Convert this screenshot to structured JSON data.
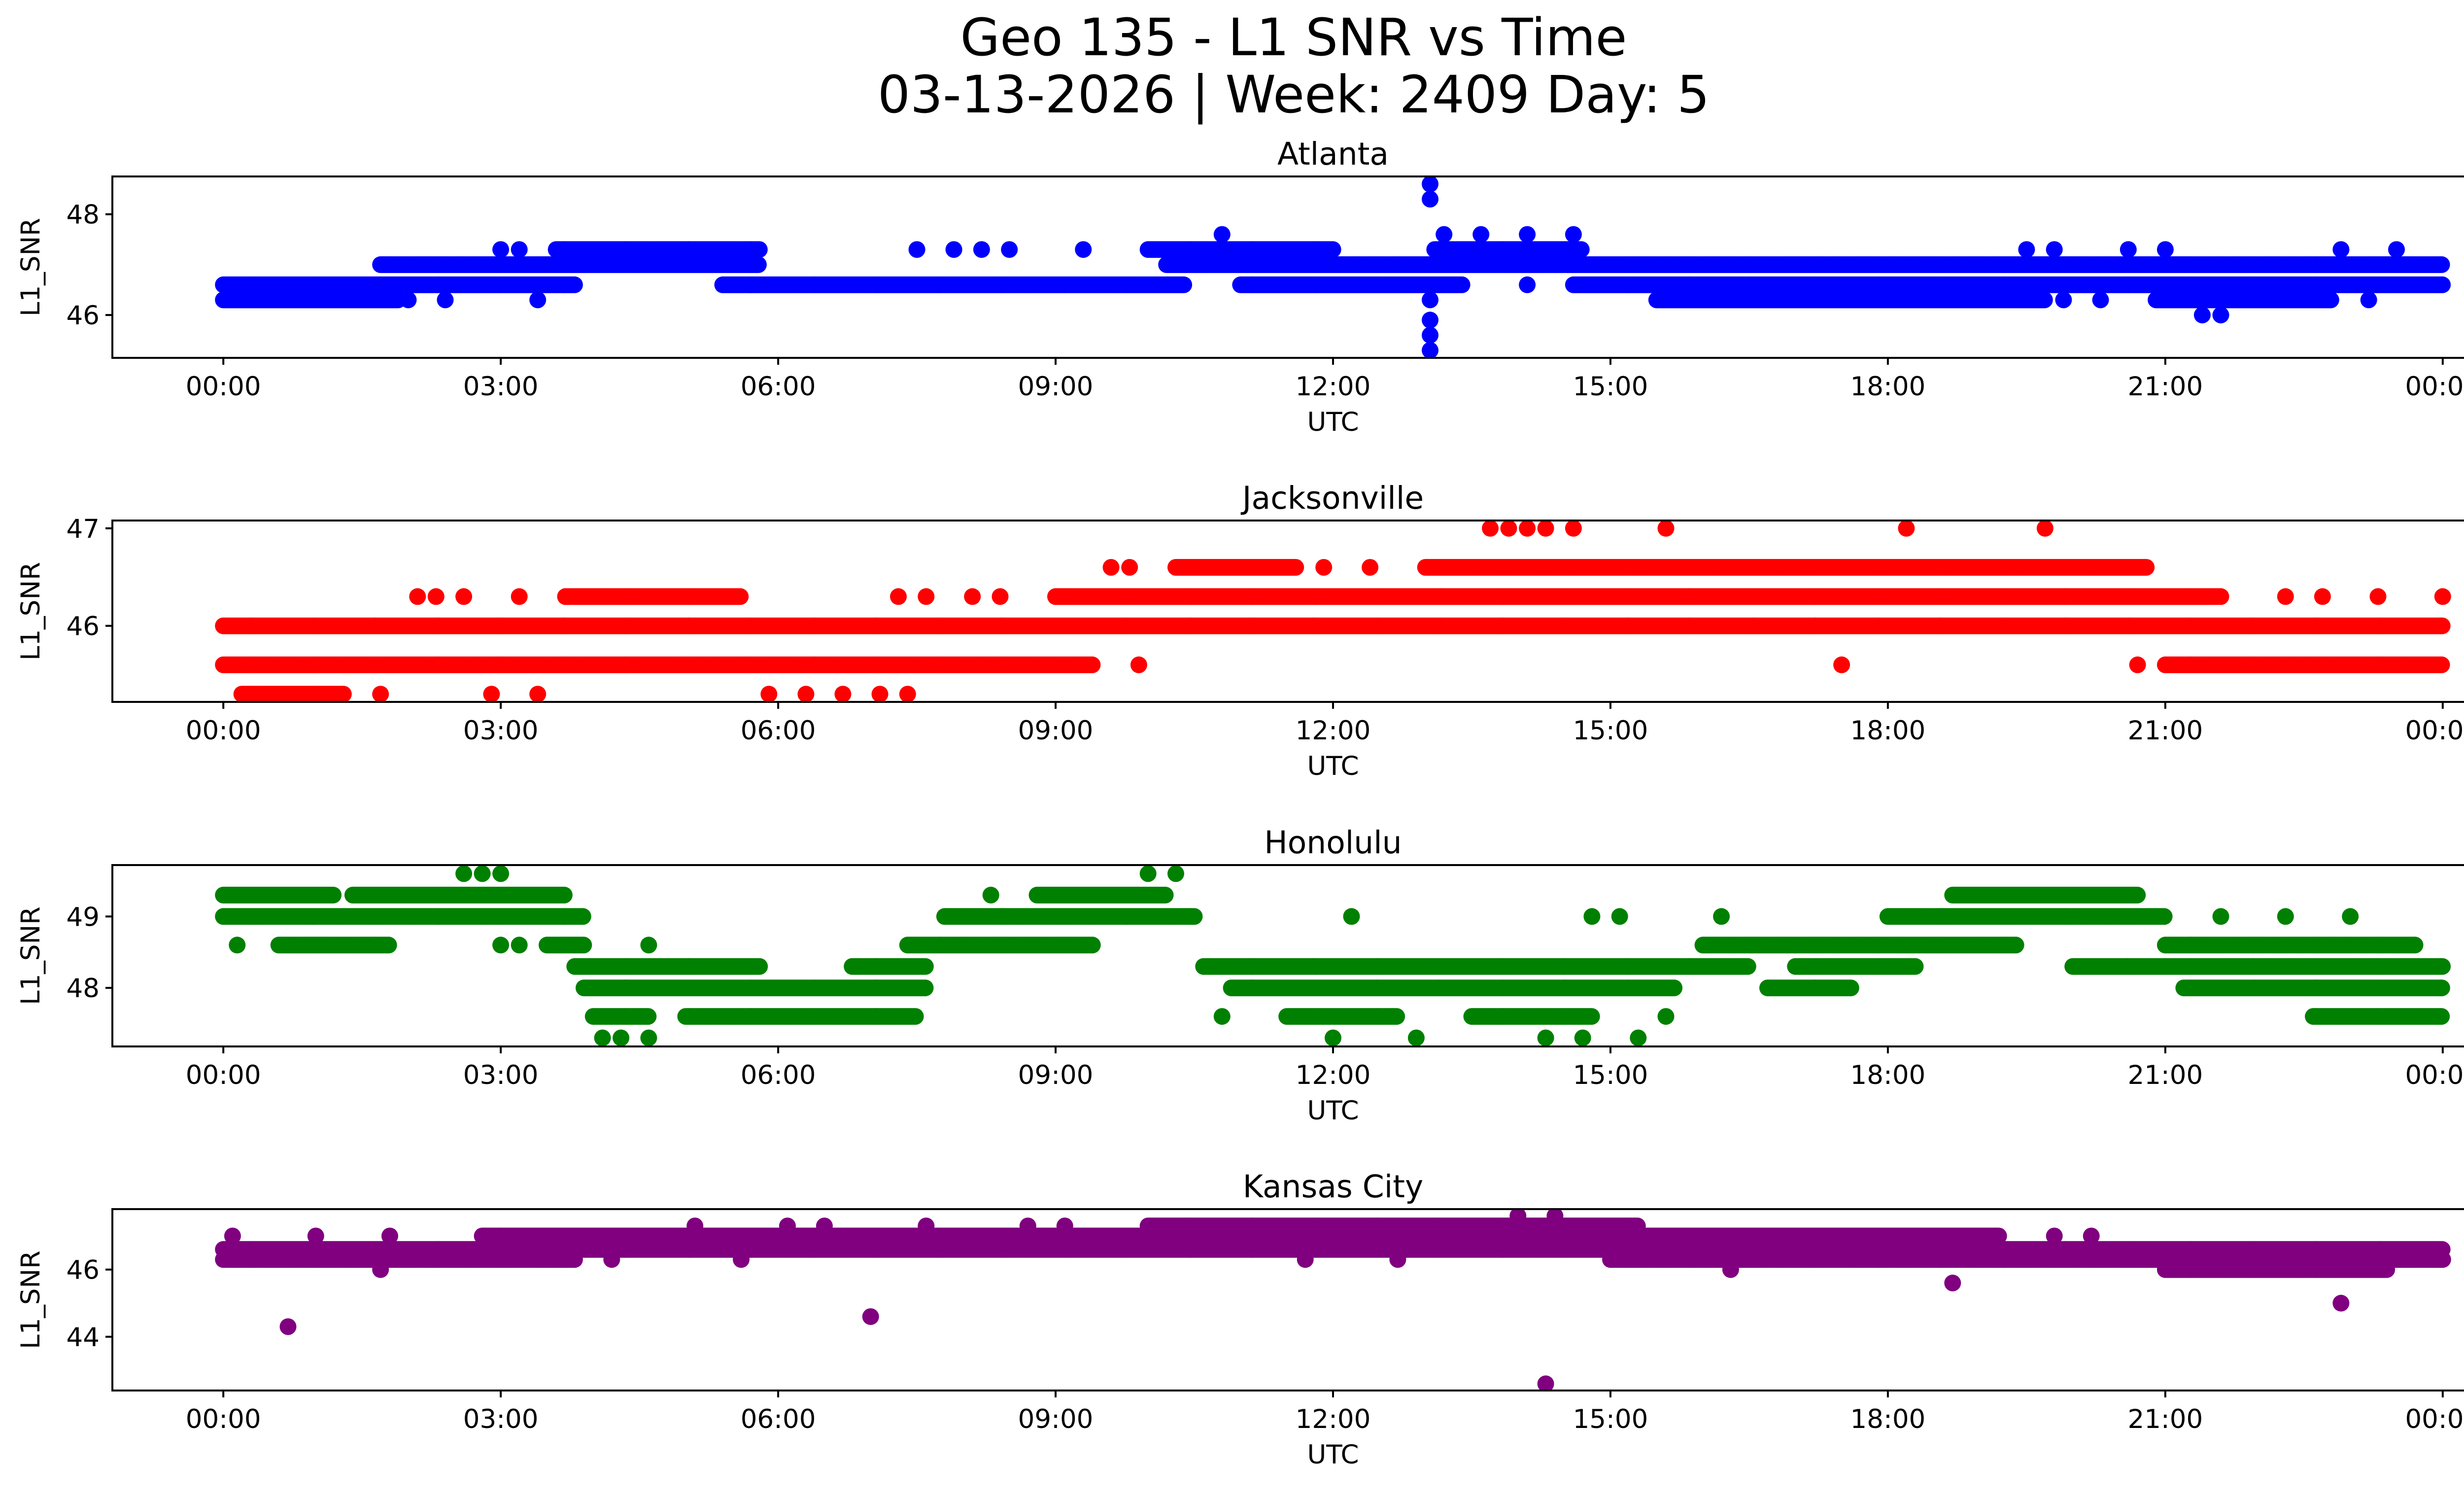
{
  "figure": {
    "title_line1": "Geo 135 - L1 SNR vs Time",
    "title_line2": "03-13-2026 | Week: 2409 Day: 5"
  },
  "chart_data": [
    {
      "type": "scatter",
      "title": "Atlanta",
      "xlabel": "UTC",
      "ylabel": "L1_SNR",
      "color": "#0000ff",
      "xlim": [
        -1.2,
        25.2
      ],
      "ylim": [
        45.15,
        48.75
      ],
      "x_ticks": [
        0,
        3,
        6,
        9,
        12,
        15,
        18,
        21,
        24
      ],
      "x_tick_labels": [
        "00:00",
        "03:00",
        "06:00",
        "09:00",
        "12:00",
        "15:00",
        "18:00",
        "21:00",
        "00:00"
      ],
      "y_ticks": [
        46,
        48
      ],
      "y_tick_labels": [
        "46",
        "48"
      ],
      "bands": [
        {
          "y": 47.0,
          "ranges": [
            [
              1.7,
              5.8
            ],
            [
              10.2,
              24.0
            ]
          ]
        },
        {
          "y": 46.6,
          "ranges": [
            [
              0.0,
              3.8
            ],
            [
              5.4,
              10.4
            ],
            [
              11.0,
              13.4
            ],
            [
              14.6,
              24.0
            ]
          ]
        },
        {
          "y": 46.3,
          "ranges": [
            [
              0.0,
              1.9
            ],
            [
              15.5,
              19.7
            ],
            [
              20.9,
              22.8
            ]
          ]
        },
        {
          "y": 47.3,
          "ranges": [
            [
              3.6,
              5.8
            ],
            [
              10.0,
              12.0
            ],
            [
              13.1,
              14.7
            ]
          ]
        }
      ],
      "outliers": [
        {
          "x": 13.05,
          "y": 48.6
        },
        {
          "x": 13.05,
          "y": 48.3
        },
        {
          "x": 13.05,
          "y": 46.3
        },
        {
          "x": 13.05,
          "y": 45.9
        },
        {
          "x": 13.05,
          "y": 45.6
        },
        {
          "x": 13.05,
          "y": 45.3
        },
        {
          "x": 10.8,
          "y": 47.6
        },
        {
          "x": 14.6,
          "y": 47.6
        },
        {
          "x": 13.2,
          "y": 47.6
        },
        {
          "x": 13.6,
          "y": 47.6
        },
        {
          "x": 14.1,
          "y": 47.6
        },
        {
          "x": 3.0,
          "y": 47.3
        },
        {
          "x": 3.2,
          "y": 47.3
        },
        {
          "x": 7.5,
          "y": 47.3
        },
        {
          "x": 7.9,
          "y": 47.3
        },
        {
          "x": 8.2,
          "y": 47.3
        },
        {
          "x": 8.5,
          "y": 47.3
        },
        {
          "x": 9.3,
          "y": 47.3
        },
        {
          "x": 19.5,
          "y": 47.3
        },
        {
          "x": 19.8,
          "y": 47.3
        },
        {
          "x": 20.6,
          "y": 47.3
        },
        {
          "x": 21.0,
          "y": 47.3
        },
        {
          "x": 22.9,
          "y": 47.3
        },
        {
          "x": 23.5,
          "y": 47.3
        },
        {
          "x": 2.0,
          "y": 46.3
        },
        {
          "x": 2.4,
          "y": 46.3
        },
        {
          "x": 3.4,
          "y": 46.3
        },
        {
          "x": 14.1,
          "y": 46.6
        },
        {
          "x": 19.9,
          "y": 46.3
        },
        {
          "x": 20.3,
          "y": 46.3
        },
        {
          "x": 21.4,
          "y": 46.0
        },
        {
          "x": 21.6,
          "y": 46.0
        },
        {
          "x": 23.2,
          "y": 46.3
        }
      ]
    },
    {
      "type": "scatter",
      "title": "Jacksonville",
      "xlabel": "UTC",
      "ylabel": "L1_SNR",
      "color": "#ff0000",
      "xlim": [
        -1.2,
        25.2
      ],
      "ylim": [
        45.22,
        47.08
      ],
      "x_ticks": [
        0,
        3,
        6,
        9,
        12,
        15,
        18,
        21,
        24
      ],
      "x_tick_labels": [
        "00:00",
        "03:00",
        "06:00",
        "09:00",
        "12:00",
        "15:00",
        "18:00",
        "21:00",
        "00:00"
      ],
      "y_ticks": [
        46,
        47
      ],
      "y_tick_labels": [
        "46",
        "47"
      ],
      "bands": [
        {
          "y": 46.0,
          "ranges": [
            [
              0.0,
              24.0
            ]
          ]
        },
        {
          "y": 45.6,
          "ranges": [
            [
              0.0,
              9.4
            ],
            [
              21.0,
              24.0
            ]
          ]
        },
        {
          "y": 46.3,
          "ranges": [
            [
              3.7,
              5.6
            ],
            [
              9.0,
              21.6
            ]
          ]
        },
        {
          "y": 46.6,
          "ranges": [
            [
              10.3,
              11.6
            ],
            [
              13.0,
              20.8
            ]
          ]
        },
        {
          "y": 45.3,
          "ranges": [
            [
              0.2,
              1.3
            ]
          ]
        }
      ],
      "outliers": [
        {
          "x": 13.7,
          "y": 47.0
        },
        {
          "x": 13.9,
          "y": 47.0
        },
        {
          "x": 14.1,
          "y": 47.0
        },
        {
          "x": 14.3,
          "y": 47.0
        },
        {
          "x": 14.6,
          "y": 47.0
        },
        {
          "x": 15.6,
          "y": 47.0
        },
        {
          "x": 18.2,
          "y": 47.0
        },
        {
          "x": 19.7,
          "y": 47.0
        },
        {
          "x": 9.6,
          "y": 46.6
        },
        {
          "x": 9.8,
          "y": 46.6
        },
        {
          "x": 11.9,
          "y": 46.6
        },
        {
          "x": 12.4,
          "y": 46.6
        },
        {
          "x": 2.1,
          "y": 46.3
        },
        {
          "x": 2.3,
          "y": 46.3
        },
        {
          "x": 2.6,
          "y": 46.3
        },
        {
          "x": 3.2,
          "y": 46.3
        },
        {
          "x": 7.3,
          "y": 46.3
        },
        {
          "x": 7.6,
          "y": 46.3
        },
        {
          "x": 8.1,
          "y": 46.3
        },
        {
          "x": 8.4,
          "y": 46.3
        },
        {
          "x": 22.3,
          "y": 46.3
        },
        {
          "x": 22.7,
          "y": 46.3
        },
        {
          "x": 23.3,
          "y": 46.3
        },
        {
          "x": 24.0,
          "y": 46.3
        },
        {
          "x": 9.9,
          "y": 45.6
        },
        {
          "x": 17.5,
          "y": 45.6
        },
        {
          "x": 20.7,
          "y": 45.6
        },
        {
          "x": 2.9,
          "y": 45.3
        },
        {
          "x": 3.4,
          "y": 45.3
        },
        {
          "x": 1.7,
          "y": 45.3
        },
        {
          "x": 5.9,
          "y": 45.3
        },
        {
          "x": 6.3,
          "y": 45.3
        },
        {
          "x": 6.7,
          "y": 45.3
        },
        {
          "x": 7.1,
          "y": 45.3
        },
        {
          "x": 7.4,
          "y": 45.3
        }
      ]
    },
    {
      "type": "scatter",
      "title": "Honolulu",
      "xlabel": "UTC",
      "ylabel": "L1_SNR",
      "color": "#008000",
      "xlim": [
        -1.2,
        25.2
      ],
      "ylim": [
        47.18,
        49.72
      ],
      "x_ticks": [
        0,
        3,
        6,
        9,
        12,
        15,
        18,
        21,
        24
      ],
      "x_tick_labels": [
        "00:00",
        "03:00",
        "06:00",
        "09:00",
        "12:00",
        "15:00",
        "18:00",
        "21:00",
        "00:00"
      ],
      "y_ticks": [
        48,
        49
      ],
      "y_tick_labels": [
        "48",
        "49"
      ],
      "bands": [
        {
          "y": 49.3,
          "ranges": [
            [
              0.0,
              1.2
            ],
            [
              1.4,
              3.7
            ],
            [
              8.8,
              10.2
            ],
            [
              18.7,
              20.7
            ]
          ]
        },
        {
          "y": 49.0,
          "ranges": [
            [
              0.0,
              3.9
            ],
            [
              7.8,
              10.5
            ],
            [
              18.0,
              21.0
            ]
          ]
        },
        {
          "y": 48.6,
          "ranges": [
            [
              0.6,
              1.8
            ],
            [
              3.5,
              3.9
            ],
            [
              7.4,
              9.4
            ],
            [
              16.0,
              19.4
            ],
            [
              21.0,
              23.7
            ]
          ]
        },
        {
          "y": 48.3,
          "ranges": [
            [
              3.8,
              5.8
            ],
            [
              6.8,
              7.6
            ],
            [
              10.6,
              16.5
            ],
            [
              17.0,
              18.3
            ],
            [
              20.0,
              24.0
            ]
          ]
        },
        {
          "y": 48.0,
          "ranges": [
            [
              3.9,
              7.6
            ],
            [
              10.9,
              15.7
            ],
            [
              16.7,
              17.6
            ],
            [
              21.2,
              24.0
            ]
          ]
        },
        {
          "y": 47.6,
          "ranges": [
            [
              4.0,
              4.6
            ],
            [
              5.0,
              7.5
            ],
            [
              11.5,
              12.7
            ],
            [
              13.5,
              14.8
            ],
            [
              22.6,
              24.0
            ]
          ]
        }
      ],
      "outliers": [
        {
          "x": 2.6,
          "y": 49.6
        },
        {
          "x": 2.8,
          "y": 49.6
        },
        {
          "x": 3.0,
          "y": 49.6
        },
        {
          "x": 10.0,
          "y": 49.6
        },
        {
          "x": 10.3,
          "y": 49.6
        },
        {
          "x": 0.15,
          "y": 48.6
        },
        {
          "x": 3.0,
          "y": 48.6
        },
        {
          "x": 3.2,
          "y": 48.6
        },
        {
          "x": 4.6,
          "y": 48.6
        },
        {
          "x": 8.3,
          "y": 49.3
        },
        {
          "x": 12.2,
          "y": 49.0
        },
        {
          "x": 14.8,
          "y": 49.0
        },
        {
          "x": 15.1,
          "y": 49.0
        },
        {
          "x": 16.2,
          "y": 49.0
        },
        {
          "x": 4.1,
          "y": 47.3
        },
        {
          "x": 4.3,
          "y": 47.3
        },
        {
          "x": 4.6,
          "y": 47.3
        },
        {
          "x": 12.0,
          "y": 47.3
        },
        {
          "x": 12.9,
          "y": 47.3
        },
        {
          "x": 14.3,
          "y": 47.3
        },
        {
          "x": 14.7,
          "y": 47.3
        },
        {
          "x": 15.3,
          "y": 47.3
        },
        {
          "x": 10.8,
          "y": 47.6
        },
        {
          "x": 15.6,
          "y": 47.6
        },
        {
          "x": 21.6,
          "y": 49.0
        },
        {
          "x": 22.3,
          "y": 49.0
        },
        {
          "x": 23.0,
          "y": 49.0
        }
      ]
    },
    {
      "type": "scatter",
      "title": "Kansas City",
      "xlabel": "UTC",
      "ylabel": "L1_SNR",
      "color": "#800080",
      "xlim": [
        -1.2,
        25.2
      ],
      "ylim": [
        42.4,
        47.8
      ],
      "x_ticks": [
        0,
        3,
        6,
        9,
        12,
        15,
        18,
        21,
        24
      ],
      "x_tick_labels": [
        "00:00",
        "03:00",
        "06:00",
        "09:00",
        "12:00",
        "15:00",
        "18:00",
        "21:00",
        "00:00"
      ],
      "y_ticks": [
        44,
        46
      ],
      "y_tick_labels": [
        "44",
        "46"
      ],
      "bands": [
        {
          "y": 46.6,
          "ranges": [
            [
              0.0,
              24.0
            ]
          ]
        },
        {
          "y": 46.3,
          "ranges": [
            [
              0.0,
              3.8
            ],
            [
              15.0,
              24.0
            ]
          ]
        },
        {
          "y": 47.0,
          "ranges": [
            [
              2.8,
              19.2
            ]
          ]
        },
        {
          "y": 47.3,
          "ranges": [
            [
              10.0,
              15.3
            ]
          ]
        },
        {
          "y": 46.0,
          "ranges": [
            [
              21.0,
              23.4
            ]
          ]
        }
      ],
      "outliers": [
        {
          "x": 0.7,
          "y": 44.3
        },
        {
          "x": 7.0,
          "y": 44.6
        },
        {
          "x": 14.3,
          "y": 42.6
        },
        {
          "x": 18.7,
          "y": 45.6
        },
        {
          "x": 22.9,
          "y": 45.0
        },
        {
          "x": 14.0,
          "y": 47.6
        },
        {
          "x": 14.4,
          "y": 47.6
        },
        {
          "x": 0.1,
          "y": 47.0
        },
        {
          "x": 1.0,
          "y": 47.0
        },
        {
          "x": 1.8,
          "y": 47.0
        },
        {
          "x": 5.1,
          "y": 47.3
        },
        {
          "x": 6.1,
          "y": 47.3
        },
        {
          "x": 6.5,
          "y": 47.3
        },
        {
          "x": 7.6,
          "y": 47.3
        },
        {
          "x": 8.7,
          "y": 47.3
        },
        {
          "x": 9.1,
          "y": 47.3
        },
        {
          "x": 1.7,
          "y": 46.0
        },
        {
          "x": 4.2,
          "y": 46.3
        },
        {
          "x": 5.6,
          "y": 46.3
        },
        {
          "x": 11.7,
          "y": 46.3
        },
        {
          "x": 12.7,
          "y": 46.3
        },
        {
          "x": 16.3,
          "y": 46.0
        },
        {
          "x": 19.8,
          "y": 47.0
        },
        {
          "x": 20.2,
          "y": 47.0
        }
      ]
    }
  ]
}
